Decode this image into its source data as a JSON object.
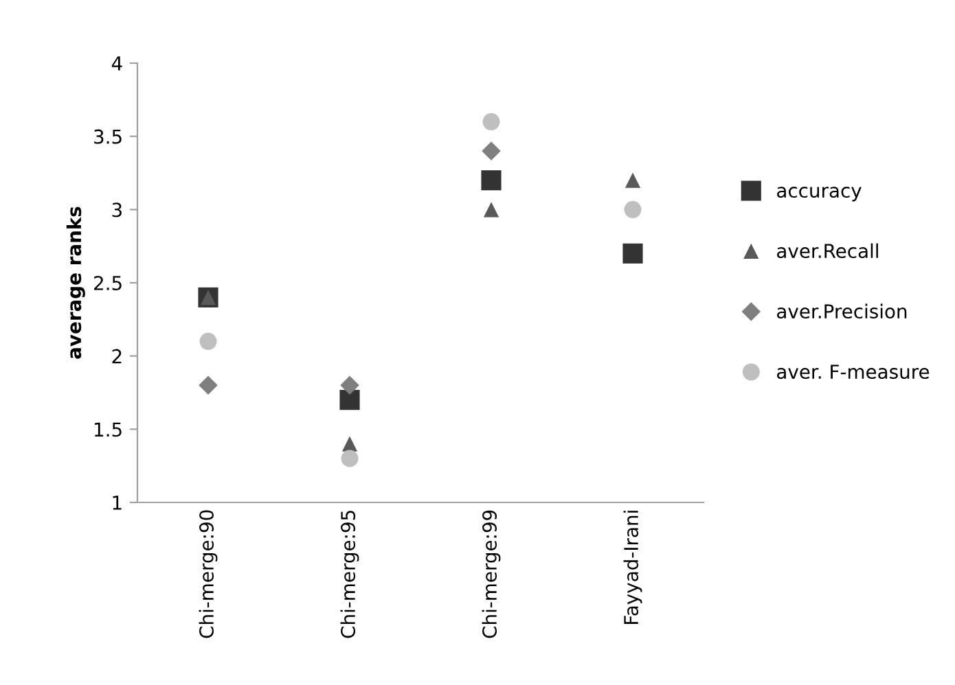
{
  "chart_data": {
    "type": "scatter",
    "ylabel": "average ranks",
    "categories": [
      "Chi-merge:90",
      "Chi-merge:95",
      "Chi-merge:99",
      "Fayyad-Irani"
    ],
    "series": [
      {
        "name": "accuracy",
        "color": "#333333",
        "marker": "square",
        "values": [
          2.4,
          1.7,
          3.2,
          2.7
        ]
      },
      {
        "name": "aver.Recall",
        "color": "#595959",
        "marker": "triangle",
        "values": [
          2.4,
          1.4,
          3.0,
          3.2
        ]
      },
      {
        "name": "aver.Precision",
        "color": "#7f7f7f",
        "marker": "diamond",
        "values": [
          1.8,
          1.8,
          3.4,
          null
        ]
      },
      {
        "name": "aver. F-measure",
        "color": "#bfbfbf",
        "marker": "circle",
        "values": [
          2.1,
          1.3,
          3.6,
          3.0
        ]
      }
    ],
    "ylim": [
      1,
      4
    ],
    "yticks": [
      1,
      1.5,
      2,
      2.5,
      3,
      3.5,
      4
    ],
    "grid": false,
    "legend": "right"
  }
}
